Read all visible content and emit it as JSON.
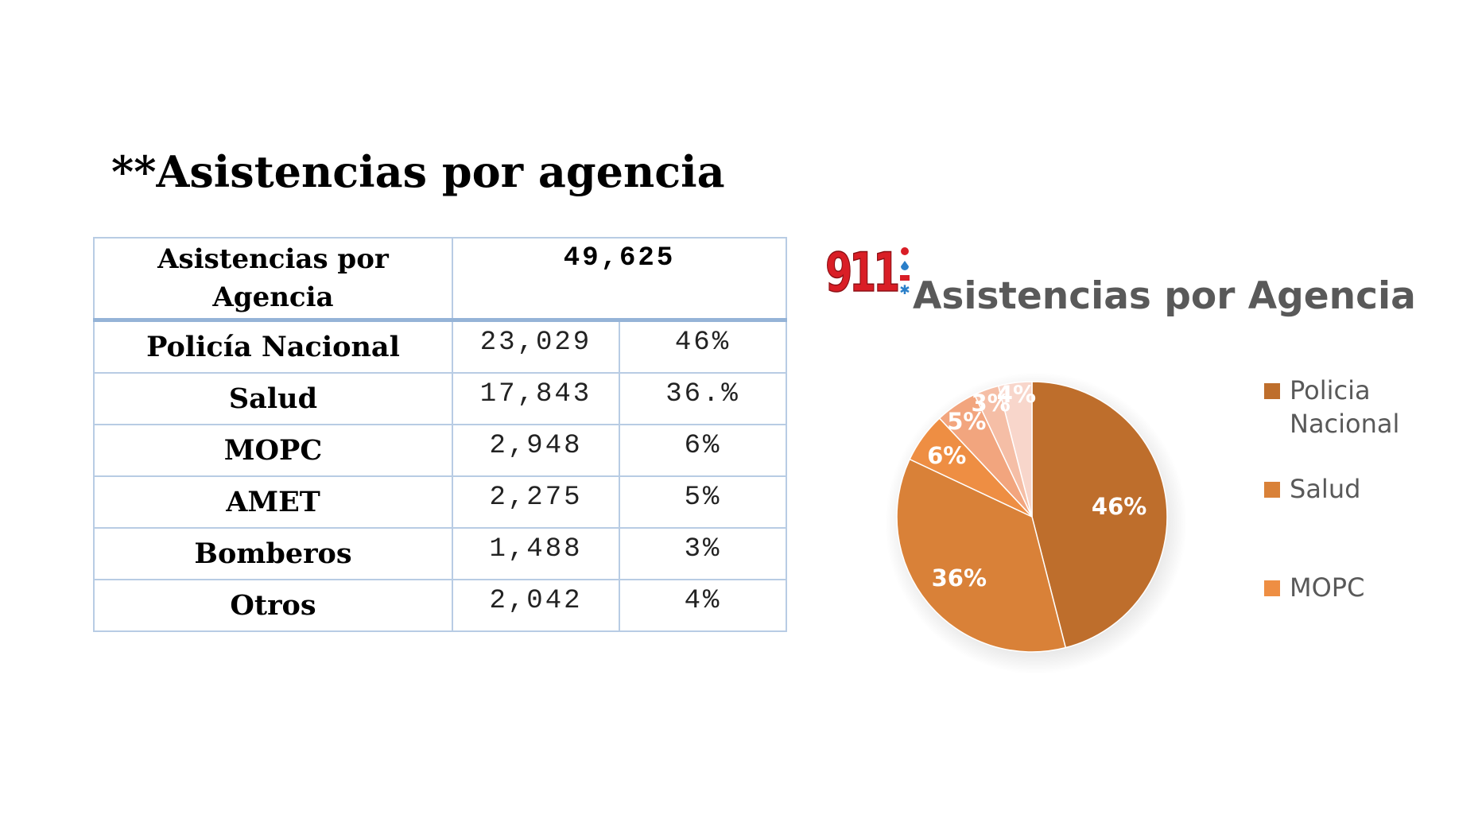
{
  "slide": {
    "title": "**Asistencias por agencia"
  },
  "table": {
    "header": {
      "label": "Asistencias por Agencia",
      "total": "49,625"
    },
    "rows": [
      {
        "agency": "Policía Nacional",
        "count": "23,029",
        "percent": "46%"
      },
      {
        "agency": "Salud",
        "count": "17,843",
        "percent": "36.%"
      },
      {
        "agency": "MOPC",
        "count": "2,948",
        "percent": "6%"
      },
      {
        "agency": "AMET",
        "count": "2,275",
        "percent": "5%"
      },
      {
        "agency": "Bomberos",
        "count": "1,488",
        "percent": "3%"
      },
      {
        "agency": "Otros",
        "count": "2,042",
        "percent": "4%"
      }
    ]
  },
  "logo": {
    "text": "911"
  },
  "chart_data": {
    "type": "pie",
    "title": "Asistencias por Agencia",
    "categories": [
      "Policia Nacional",
      "Salud",
      "MOPC",
      "AMET",
      "Bomberos",
      "Otros"
    ],
    "values": [
      46,
      36,
      6,
      5,
      3,
      4
    ],
    "data_labels": [
      "46%",
      "36%",
      "6%",
      "5%",
      "3%",
      "4%"
    ],
    "colors": [
      "#be6e2c",
      "#d98138",
      "#ee8e43",
      "#f2a57e",
      "#f5bea6",
      "#f8d6cb"
    ],
    "legend_visible": [
      "Policia Nacional",
      "Salud",
      "MOPC"
    ],
    "legend_position": "right",
    "label_color": "#ffffff"
  }
}
